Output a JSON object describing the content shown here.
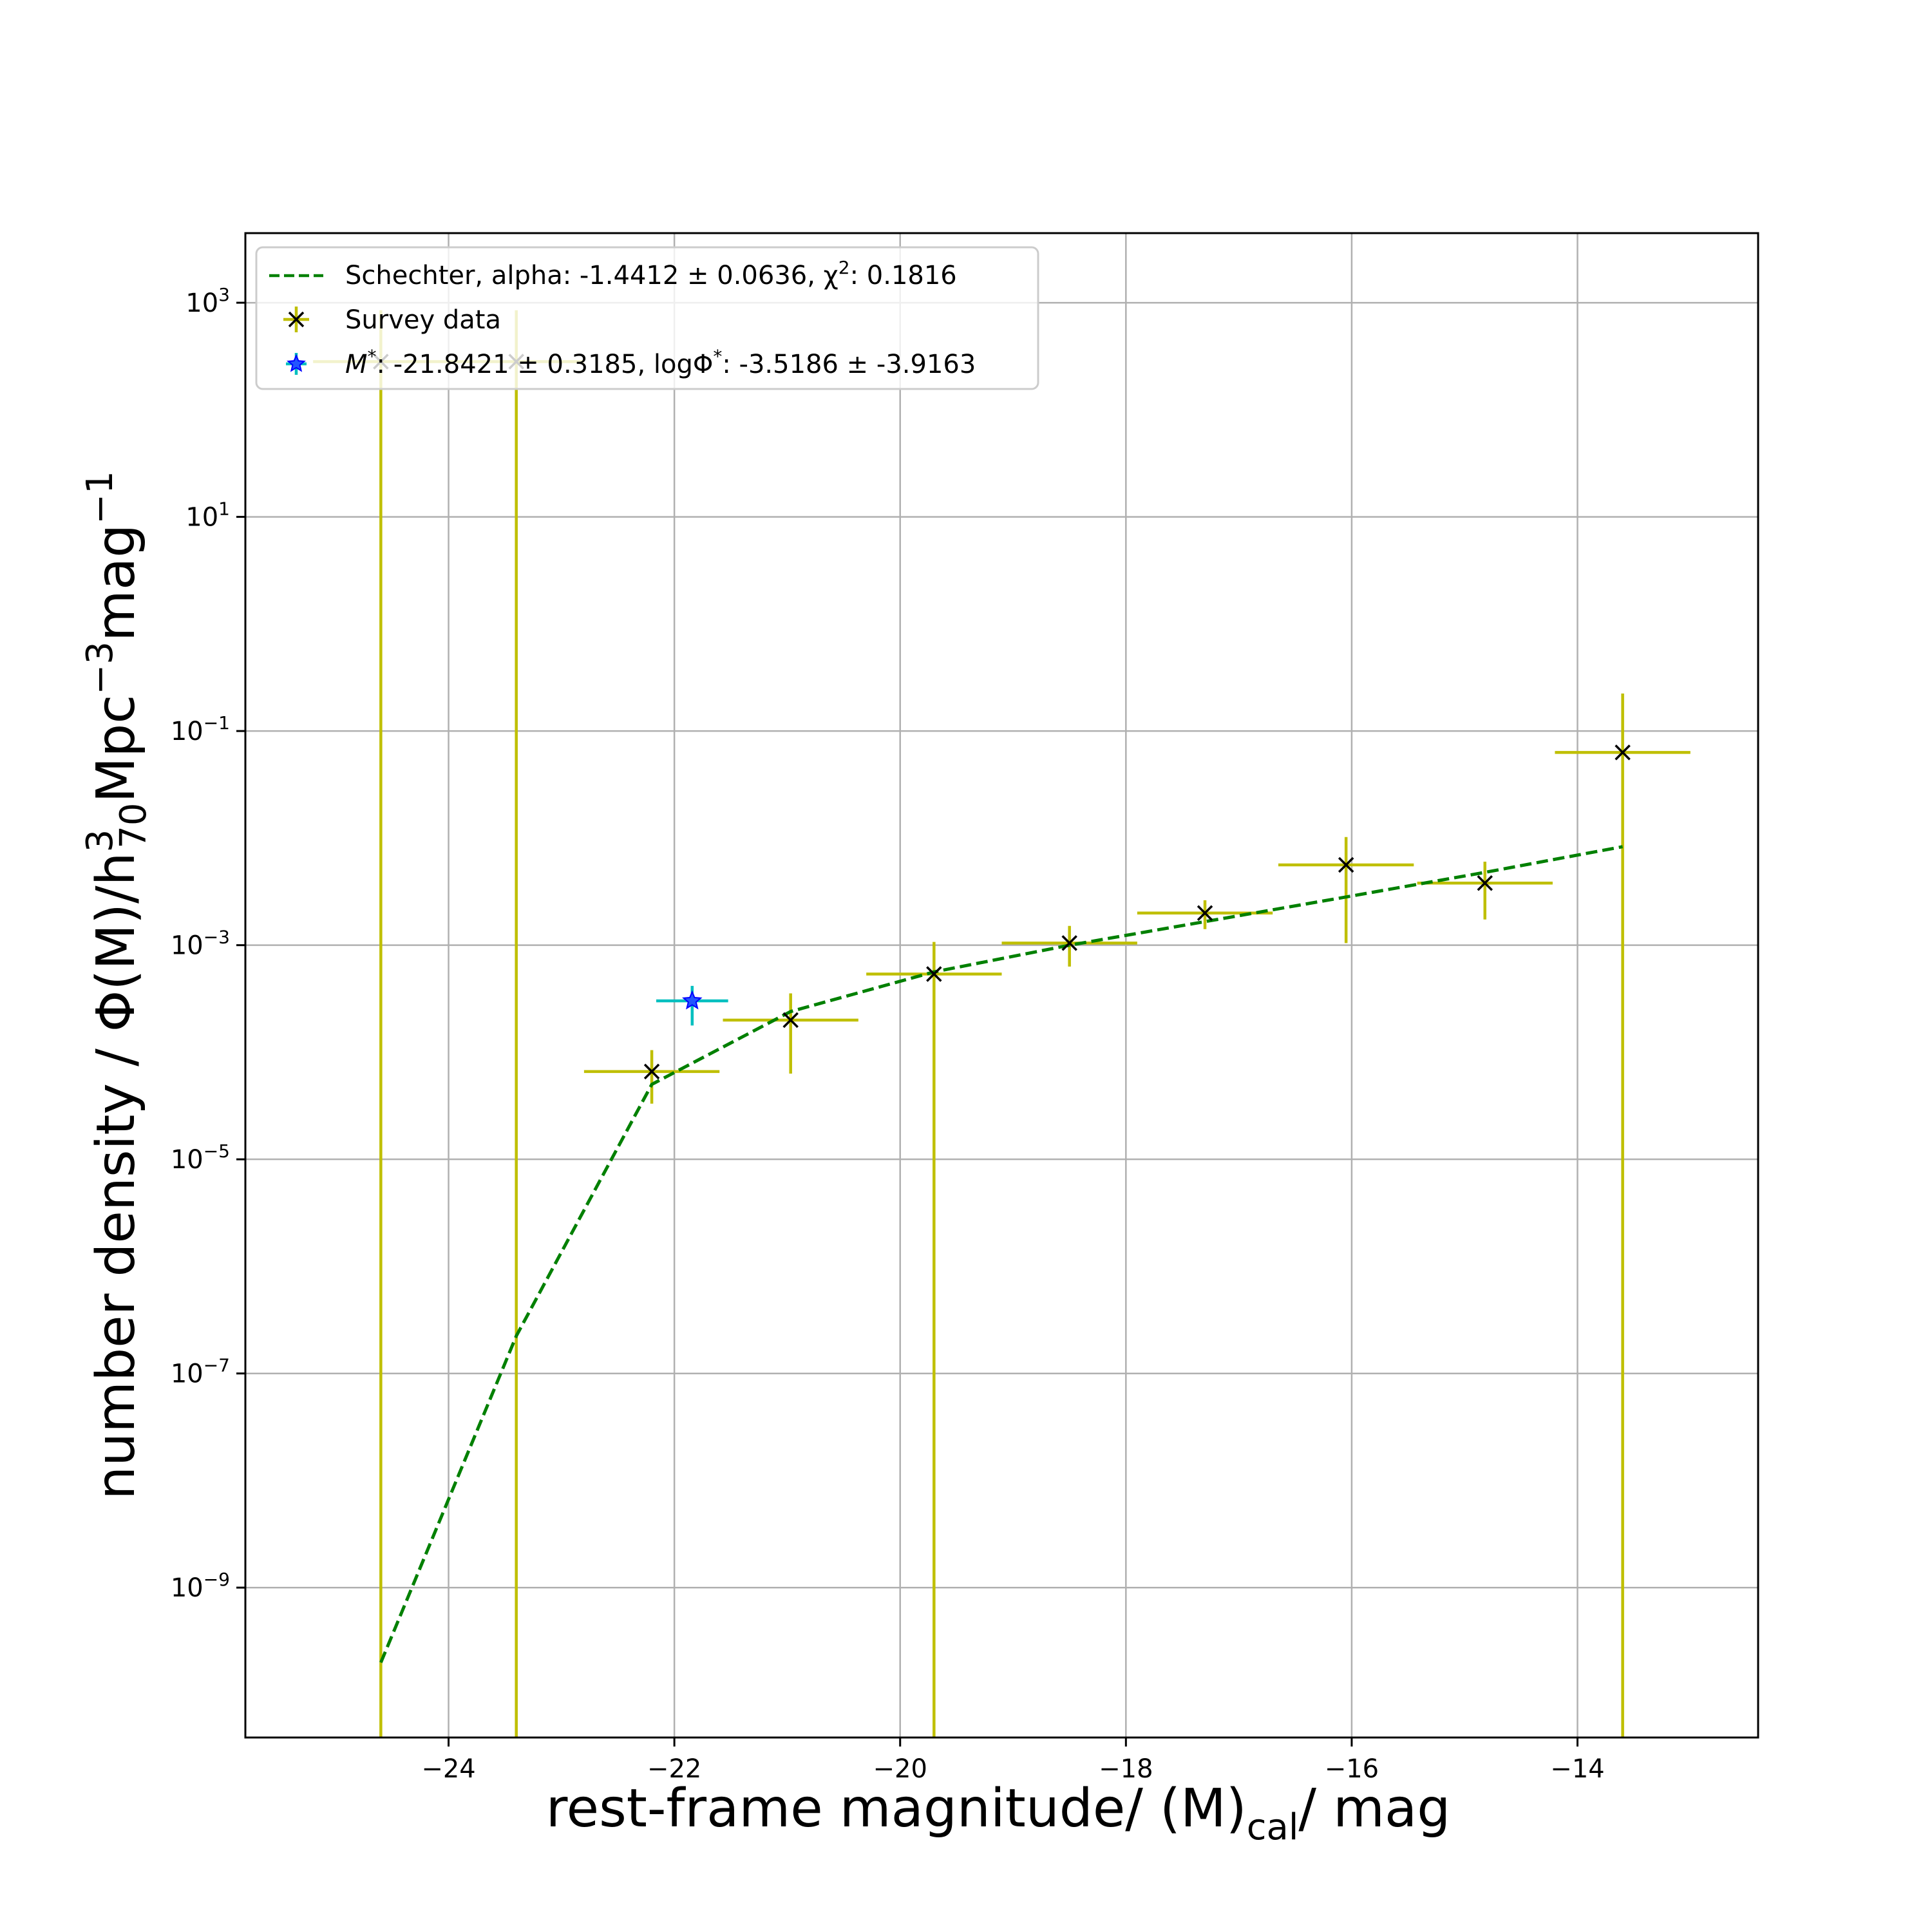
{
  "chart_data": {
    "type": "scatter",
    "title": "",
    "xlabel": "rest-frame magnitude/ (M)",
    "xlabel_sub": "cal",
    "xlabel_tail": "/ mag",
    "ylabel": "number density / Φ(M)/h",
    "ylabel_sup": "3",
    "ylabel_sub": "70",
    "ylabel_tail": "Mpc",
    "ylabel_sup2": "−3",
    "ylabel_tail2": "mag",
    "ylabel_sup3": "−1",
    "y_scale": "log",
    "xlim": [
      -25.8,
      -12.4
    ],
    "ylim_log10": [
      -10.4,
      3.65
    ],
    "x_ticks": [
      {
        "value": -24,
        "label": "−24"
      },
      {
        "value": -22,
        "label": "−22"
      },
      {
        "value": -20,
        "label": "−20"
      },
      {
        "value": -18,
        "label": "−18"
      },
      {
        "value": -16,
        "label": "−16"
      },
      {
        "value": -14,
        "label": "−14"
      }
    ],
    "y_ticks": [
      {
        "exp": 3,
        "base": "10",
        "sup": "3"
      },
      {
        "exp": 1,
        "base": "10",
        "sup": "1"
      },
      {
        "exp": -1,
        "base": "10",
        "sup": "−1"
      },
      {
        "exp": -3,
        "base": "10",
        "sup": "−3"
      },
      {
        "exp": -5,
        "base": "10",
        "sup": "−5"
      },
      {
        "exp": -7,
        "base": "10",
        "sup": "−7"
      },
      {
        "exp": -9,
        "base": "10",
        "sup": "−9"
      }
    ],
    "grid": true,
    "legend_position": "top-left",
    "legend": [
      {
        "label": "Schechter, alpha: -1.4412 ± 0.0636, χ",
        "sup": "2",
        "tail": ": 0.1816",
        "style": "dashed-line",
        "color": "#008000"
      },
      {
        "label": "Survey data",
        "sup": "",
        "tail": "",
        "style": "x-marker",
        "color": "#bfbf00"
      },
      {
        "label": "M",
        "sup": "*",
        "tail": ": -21.8421 ± 0.3185, logΦ",
        "sup2": "*",
        "tail2": ": -3.5186 ± -3.9163",
        "style": "star-marker",
        "color": "#0000ff"
      }
    ],
    "series": [
      {
        "kind": "fit-line",
        "color": "#008000",
        "x": [
          -24.6,
          -23.4,
          -22.2,
          -20.97,
          -19.7,
          -18.5,
          -17.3,
          -16.05,
          -14.82,
          -13.6
        ],
        "log10_y": [
          -9.7,
          -6.65,
          -4.3,
          -3.62,
          -3.25,
          -3.0,
          -2.78,
          -2.55,
          -2.32,
          -2.08
        ]
      },
      {
        "kind": "survey-data",
        "color": "#bfbf00",
        "marker_color": "#000000",
        "points": [
          {
            "x": -24.6,
            "log10_y": 2.45,
            "x_err": 0.6,
            "log10_y_high": 2.93,
            "log10_y_low": -10.4
          },
          {
            "x": -23.4,
            "log10_y": 2.45,
            "x_err": 0.6,
            "log10_y_high": 2.93,
            "log10_y_low": -10.4
          },
          {
            "x": -22.2,
            "log10_y": -4.18,
            "x_err": 0.6,
            "log10_y_high": -3.98,
            "log10_y_low": -4.48
          },
          {
            "x": -20.97,
            "log10_y": -3.7,
            "x_err": 0.6,
            "log10_y_high": -3.45,
            "log10_y_low": -4.2
          },
          {
            "x": -19.7,
            "log10_y": -3.27,
            "x_err": 0.6,
            "log10_y_high": -2.97,
            "log10_y_low": -10.4
          },
          {
            "x": -18.5,
            "log10_y": -2.98,
            "x_err": 0.6,
            "log10_y_high": -2.82,
            "log10_y_low": -3.2
          },
          {
            "x": -17.3,
            "log10_y": -2.7,
            "x_err": 0.6,
            "log10_y_high": -2.58,
            "log10_y_low": -2.85
          },
          {
            "x": -16.05,
            "log10_y": -2.25,
            "x_err": 0.6,
            "log10_y_high": -1.99,
            "log10_y_low": -2.98
          },
          {
            "x": -14.82,
            "log10_y": -2.42,
            "x_err": 0.6,
            "log10_y_high": -2.22,
            "log10_y_low": -2.76
          },
          {
            "x": -13.6,
            "log10_y": -1.2,
            "x_err": 0.6,
            "log10_y_high": -0.65,
            "log10_y_low": -10.4
          }
        ]
      },
      {
        "kind": "m-star",
        "color": "#0000ff",
        "err_color": "#00bfbf",
        "points": [
          {
            "x": -21.8421,
            "log10_y": -3.52,
            "x_err": 0.3185,
            "log10_y_high": -3.38,
            "log10_y_low": -3.75
          }
        ]
      }
    ]
  }
}
